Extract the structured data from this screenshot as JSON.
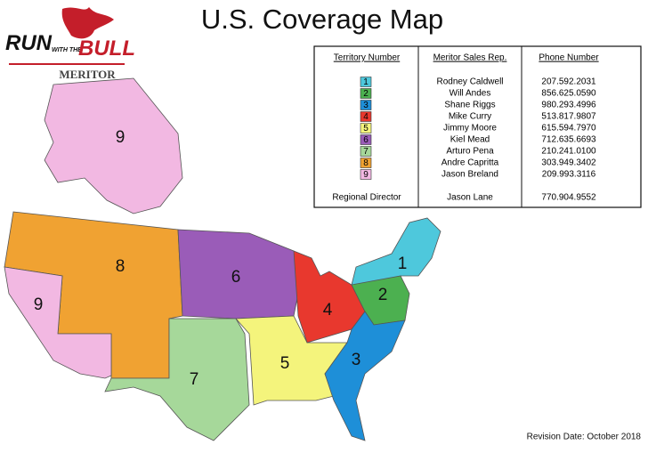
{
  "title": "U.S. Coverage Map",
  "logo": {
    "run": "RUN",
    "with_the": "WITH THE",
    "bull": "BULL",
    "brand": "MERITOR"
  },
  "table": {
    "headers": [
      "Territory Number",
      "Meritor Sales Rep.",
      "Phone Number"
    ],
    "territories": [
      {
        "number": "1",
        "rep": "Rodney Caldwell",
        "phone": "207.592.2031",
        "color": "#4ec8dc"
      },
      {
        "number": "2",
        "rep": "Will Andes",
        "phone": "856.625.0590",
        "color": "#4cb050"
      },
      {
        "number": "3",
        "rep": "Shane Riggs",
        "phone": "980.293.4996",
        "color": "#1e8fd8"
      },
      {
        "number": "4",
        "rep": "Mike Curry",
        "phone": "513.817.9807",
        "color": "#e8382e"
      },
      {
        "number": "5",
        "rep": "Jimmy Moore",
        "phone": "615.594.7970",
        "color": "#f4f47c"
      },
      {
        "number": "6",
        "rep": "Kiel Mead",
        "phone": "712.635.6693",
        "color": "#9a5cb8"
      },
      {
        "number": "7",
        "rep": "Arturo Pena",
        "phone": "210.241.0100",
        "color": "#a6d89a"
      },
      {
        "number": "8",
        "rep": "Andre Capritta",
        "phone": "303.949.3402",
        "color": "#f0a232"
      },
      {
        "number": "9",
        "rep": "Jason Breland",
        "phone": "209.993.3116",
        "color": "#f2b8e2"
      }
    ],
    "director": {
      "role": "Regional Director",
      "name": "Jason Lane",
      "phone": "770.904.9552"
    }
  },
  "revision": "Revision Date:  October 2018"
}
